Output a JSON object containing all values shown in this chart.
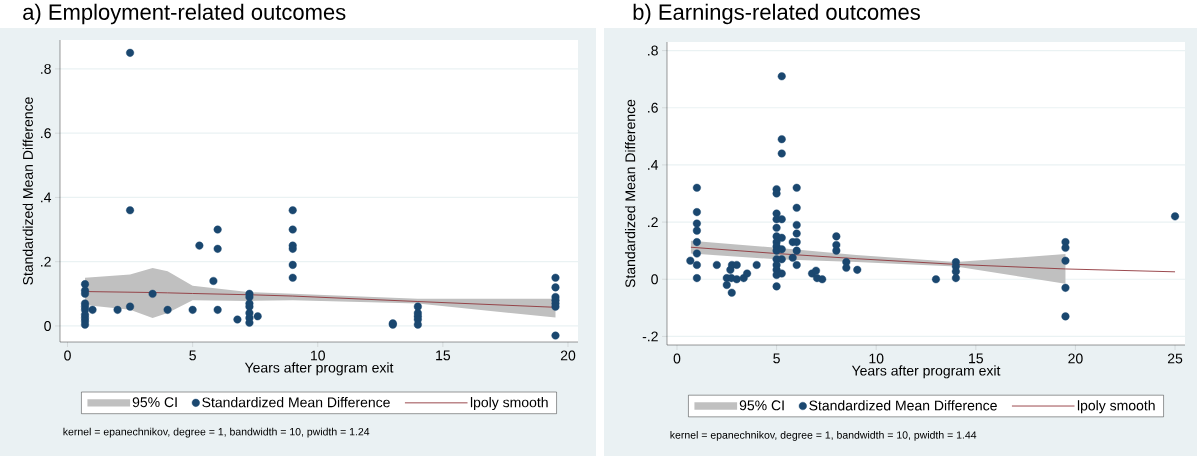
{
  "chart_data": [
    {
      "type": "scatter",
      "title": "a) Employment-related outcomes",
      "xlabel": "Years after program exit",
      "ylabel": "Standardized Mean Difference",
      "xlim": [
        -0.3,
        20.4
      ],
      "ylim": [
        -0.05,
        0.89
      ],
      "xticks": [
        0,
        5,
        10,
        15,
        20
      ],
      "yticks": [
        0,
        {
          "value": 0.2,
          "label": ".2"
        },
        {
          "value": 0.4,
          "label": ".4"
        },
        {
          "value": 0.6,
          "label": ".6"
        },
        {
          "value": 0.8,
          "label": ".8"
        }
      ],
      "grid": "y",
      "legend": "bottom",
      "annotations": [
        "95% CI",
        "kernel = epanechnikov, degree = 1, bandwidth = 10, pwidth = 1.24"
      ],
      "series": [
        {
          "name": "Standardized Mean Difference",
          "marker": "circle",
          "color": "#1a476f",
          "x": [
            0.7,
            0.7,
            0.7,
            0.7,
            0.7,
            0.7,
            0.7,
            0.7,
            0.7,
            0.7,
            1.0,
            2.0,
            2.5,
            2.5,
            2.5,
            3.4,
            4.0,
            5.0,
            5.27,
            5.83,
            6.0,
            6.0,
            6.0,
            6.79,
            7.27,
            7.27,
            7.27,
            7.27,
            7.27,
            7.27,
            7.27,
            7.6,
            9.0,
            9.0,
            9.0,
            9.0,
            9.0,
            9.0,
            13.0,
            13.0,
            14.0,
            14.0,
            14.0,
            14.0,
            14.0,
            19.5,
            19.5,
            19.5,
            19.5,
            19.5,
            19.5,
            19.5
          ],
          "values": [
            0.13,
            0.11,
            0.1,
            0.07,
            0.06,
            0.05,
            0.035,
            0.025,
            0.015,
            0.004,
            0.05,
            0.05,
            0.85,
            0.36,
            0.06,
            0.1,
            0.05,
            0.05,
            0.25,
            0.14,
            0.3,
            0.24,
            0.05,
            0.02,
            0.1,
            0.09,
            0.07,
            0.06,
            0.04,
            0.025,
            0.01,
            0.03,
            0.36,
            0.3,
            0.25,
            0.24,
            0.19,
            0.15,
            0.004,
            0.008,
            0.06,
            0.04,
            0.03,
            0.02,
            0.004,
            0.15,
            0.12,
            0.09,
            0.08,
            0.07,
            0.06,
            -0.03
          ]
        },
        {
          "name": "lpoly smooth",
          "type": "line",
          "marker": "none",
          "color": "#90353b",
          "x": [
            0.7,
            2.5,
            3.4,
            4.0,
            5.0,
            7.3,
            9,
            14,
            19.5
          ],
          "values": [
            0.107,
            0.105,
            0.104,
            0.103,
            0.101,
            0.097,
            0.093,
            0.076,
            0.058
          ],
          "lower": [
            0.065,
            0.05,
            0.025,
            0.04,
            0.08,
            0.078,
            0.08,
            0.07,
            0.026
          ],
          "upper": [
            0.15,
            0.16,
            0.18,
            0.17,
            0.125,
            0.105,
            0.1,
            0.085,
            0.085
          ]
        }
      ]
    },
    {
      "type": "scatter",
      "title": "b) Earnings-related outcomes",
      "xlabel": "Years after program exit",
      "ylabel": "Standardized Mean Difference",
      "xlim": [
        -0.5,
        25.5
      ],
      "ylim": [
        -0.23,
        0.83
      ],
      "xticks": [
        0,
        5,
        10,
        15,
        20,
        25
      ],
      "yticks": [
        {
          "value": -0.2,
          "label": "-.2"
        },
        0,
        {
          "value": 0.2,
          "label": ".2"
        },
        {
          "value": 0.4,
          "label": ".4"
        },
        {
          "value": 0.6,
          "label": ".6"
        },
        {
          "value": 0.8,
          "label": ".8"
        }
      ],
      "grid": "y",
      "legend": "bottom",
      "annotations": [
        "95% CI",
        "kernel = epanechnikov, degree = 1, bandwidth = 10, pwidth = 1.44"
      ],
      "series": [
        {
          "name": "Standardized Mean Difference",
          "marker": "circle",
          "color": "#1a476f",
          "x": [
            0.67,
            1,
            1,
            1,
            1,
            1,
            1,
            1,
            1,
            2,
            2.5,
            2.5,
            2.68,
            2.75,
            2.76,
            2.73,
            3,
            3,
            3.35,
            3.52,
            4,
            5,
            5,
            5,
            5,
            5,
            5,
            5,
            5,
            5,
            5,
            5,
            5,
            5,
            5,
            5.26,
            5.26,
            5.26,
            5.26,
            5.26,
            5.26,
            5.26,
            5.26,
            5.81,
            5.81,
            6.01,
            6.01,
            6.01,
            6.01,
            6.01,
            6.01,
            6.01,
            6.78,
            6.98,
            7.29,
            7.03,
            8,
            8,
            8,
            8.5,
            8.5,
            9.05,
            13,
            14,
            14,
            14,
            14,
            19.5,
            19.5,
            19.5,
            19.5,
            19.5,
            25
          ],
          "values": [
            0.065,
            0.32,
            0.235,
            0.195,
            0.17,
            0.13,
            0.09,
            0.05,
            0.004,
            0.05,
            0.004,
            -0.02,
            0.033,
            -0.047,
            0.05,
            0.004,
            0.05,
            0,
            0.004,
            0.02,
            0.05,
            0.315,
            0.3,
            0.23,
            0.21,
            0.18,
            0.15,
            0.13,
            0.115,
            0.1,
            0.07,
            0.05,
            0.033,
            0.015,
            -0.025,
            0.71,
            0.49,
            0.44,
            0.21,
            0.145,
            0.105,
            0.07,
            0.02,
            0.13,
            0.075,
            0.32,
            0.25,
            0.19,
            0.16,
            0.13,
            0.1,
            0.05,
            0.02,
            0.03,
            0,
            0.004,
            0.15,
            0.12,
            0.1,
            0.06,
            0.04,
            0.033,
            0,
            0.06,
            0.045,
            0.027,
            0.004,
            0.13,
            0.11,
            0.065,
            -0.03,
            -0.13,
            0.22
          ]
        },
        {
          "name": "lpoly smooth",
          "type": "line",
          "marker": "none",
          "color": "#90353b",
          "x": [
            0.7,
            5,
            9,
            14,
            19.5,
            25
          ],
          "values": [
            0.112,
            0.09,
            0.072,
            0.052,
            0.036,
            0.026
          ],
          "lower": [
            0.09,
            0.07,
            0.06,
            0.045,
            -0.016,
            null
          ],
          "upper": [
            0.135,
            0.11,
            0.085,
            0.06,
            0.088,
            null
          ]
        }
      ]
    }
  ]
}
